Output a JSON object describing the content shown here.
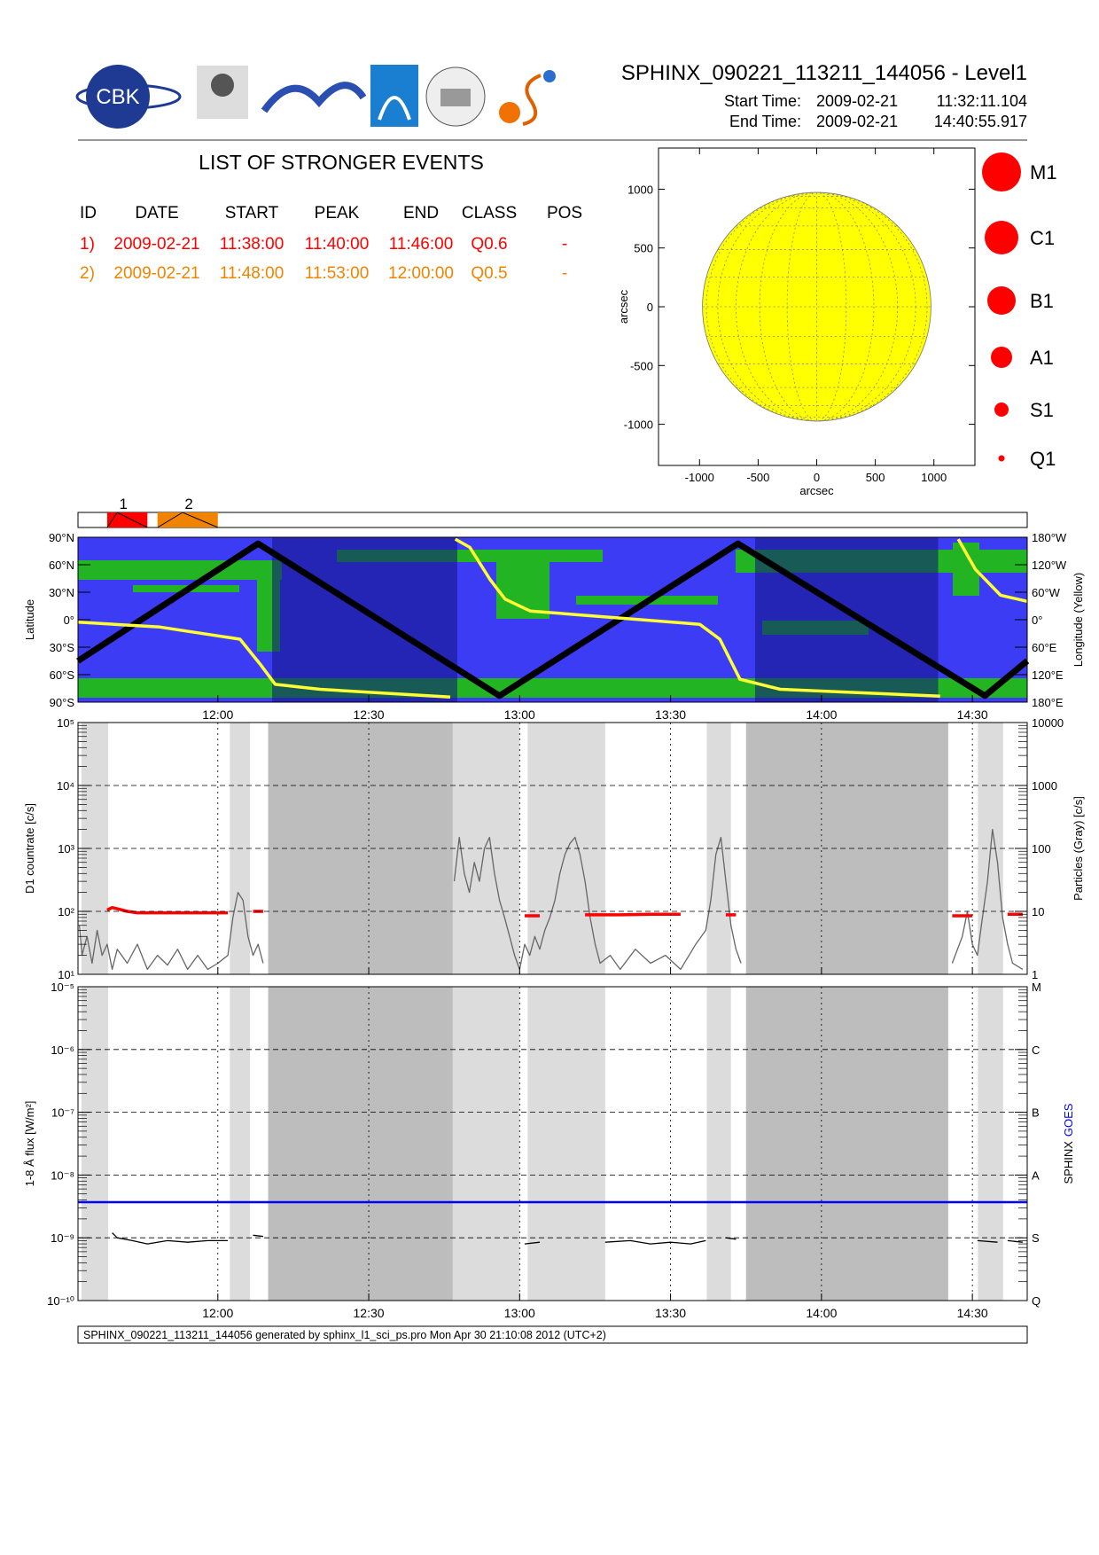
{
  "header": {
    "title": "SPHINX_090221_113211_144056 - Level1",
    "start_label": "Start Time:",
    "start_date": "2009-02-21",
    "start_time": "11:32:11.104",
    "end_label": "End Time:",
    "end_date": "2009-02-21",
    "end_time": "14:40:55.917",
    "logo_text": "CBK"
  },
  "events": {
    "title": "LIST OF STRONGER EVENTS",
    "columns": [
      "ID",
      "DATE",
      "START",
      "PEAK",
      "END",
      "CLASS",
      "POS"
    ],
    "rows": [
      [
        "1)",
        "2009-02-21",
        "11:38:00",
        "11:40:00",
        "11:46:00",
        "Q0.6",
        "-"
      ],
      [
        "2)",
        "2009-02-21",
        "11:48:00",
        "11:53:00",
        "12:00:00",
        "Q0.5",
        "-"
      ]
    ],
    "row_colors": [
      "#ff0000",
      "#f08400"
    ]
  },
  "footer": "SPHINX_090221_113211_144056 generated by sphinx_l1_sci_ps.pro Mon Apr 30 21:10:08 2012 (UTC+2)",
  "chart_data": [
    {
      "type": "disk",
      "xlabel": "arcsec",
      "ylabel": "arcsec",
      "xlim": [
        -1350,
        1350
      ],
      "ylim": [
        -1350,
        1350
      ],
      "xticks": [
        -1000,
        -500,
        0,
        500,
        1000
      ],
      "yticks": [
        -1000,
        -500,
        0,
        500,
        1000
      ],
      "radius": 975,
      "color": "#ffff00",
      "classes": [
        "M1",
        "C1",
        "B1",
        "A1",
        "S1",
        "Q1"
      ],
      "class_color": "#ff0000"
    },
    {
      "type": "timeline",
      "xlim": [
        692.2,
        880.9
      ],
      "events": [
        {
          "label": "1",
          "start": 698,
          "peak": 700,
          "end": 706,
          "color": "#ff0000"
        },
        {
          "label": "2",
          "start": 708,
          "peak": 713,
          "end": 720,
          "color": "#f08400"
        }
      ]
    },
    {
      "type": "map",
      "ylabel": "Latitude",
      "y2label": "Longitude (Yellow)",
      "xlim": [
        692.2,
        880.9
      ],
      "xticks": [
        {
          "value": 720,
          "label": "12:00"
        },
        {
          "value": 750,
          "label": "12:30"
        },
        {
          "value": 780,
          "label": "13:00"
        },
        {
          "value": 810,
          "label": "13:30"
        },
        {
          "value": 840,
          "label": "14:00"
        },
        {
          "value": 870,
          "label": "14:30"
        }
      ],
      "ylim": [
        -90,
        90
      ],
      "yticks": [
        {
          "value": 90,
          "label": "90°N"
        },
        {
          "value": 60,
          "label": "60°N"
        },
        {
          "value": 30,
          "label": "30°N"
        },
        {
          "value": 0,
          "label": "0°"
        },
        {
          "value": -30,
          "label": "30°S"
        },
        {
          "value": -60,
          "label": "60°S"
        },
        {
          "value": -90,
          "label": "90°S"
        }
      ],
      "y2lim": [
        180,
        -180
      ],
      "y2ticks": [
        {
          "value": -180,
          "label": "180°W"
        },
        {
          "value": -120,
          "label": "120°W"
        },
        {
          "value": -60,
          "label": "60°W"
        },
        {
          "value": 0,
          "label": "0°"
        },
        {
          "value": 60,
          "label": "60°E"
        },
        {
          "value": 120,
          "label": "120°E"
        },
        {
          "value": 180,
          "label": "180°E"
        }
      ],
      "shade": [
        [
          730.8,
          767.6
        ],
        [
          826.8,
          863.2
        ]
      ],
      "series": [
        {
          "color": "#000000",
          "x": [
            692.2,
            728,
            776,
            823.4,
            872.5,
            880.9
          ],
          "values": [
            -45,
            83,
            -83,
            83,
            -83,
            -45
          ]
        },
        {
          "color": "#ffff33",
          "axis": "y2",
          "x": [
            692.2,
            708.5,
            724.4,
            728.4,
            731.4,
            740.3,
            766.2,
            null,
            767.2,
            770.1,
            774.1,
            777.1,
            782.1,
            815.8,
            819.8,
            823.8,
            831.8,
            863.6,
            null,
            867.2,
            870.6,
            875.6,
            880.9
          ],
          "values": [
            5.5,
            16,
            42.5,
            97,
            141,
            152,
            169,
            null,
            -176,
            -158,
            -88,
            -45,
            -19,
            10,
            42.5,
            130,
            152,
            167,
            null,
            -176,
            -110,
            -53.5,
            -40
          ]
        }
      ]
    },
    {
      "type": "log-line",
      "ylabel": "D1 countrate [c/s]",
      "y2label": "Particles (Gray) [c/s]",
      "log": true,
      "grid": true,
      "xtick_labels": false,
      "xlim": [
        692.2,
        880.9
      ],
      "xticks": [
        {
          "value": 720,
          "label": "12:00"
        },
        {
          "value": 750,
          "label": "12:30"
        },
        {
          "value": 780,
          "label": "13:00"
        },
        {
          "value": 810,
          "label": "13:30"
        },
        {
          "value": 840,
          "label": "14:00"
        },
        {
          "value": 870,
          "label": "14:30"
        }
      ],
      "ylim": [
        10,
        100000
      ],
      "yticks": [
        {
          "value": 10,
          "label": "10¹"
        },
        {
          "value": 100,
          "label": "10²"
        },
        {
          "value": 1000,
          "label": "10³"
        },
        {
          "value": 10000,
          "label": "10⁴"
        },
        {
          "value": 100000,
          "label": "10⁵"
        }
      ],
      "y2lim": [
        1,
        10000
      ],
      "y2ticks": [
        1,
        10,
        100,
        1000,
        10000
      ],
      "light": [
        [
          692.9,
          698.2
        ],
        [
          722.4,
          726.4
        ],
        [
          766.7,
          780.0
        ],
        [
          781.6,
          797.0
        ],
        [
          817.2,
          822.0
        ],
        [
          871.1,
          876.1
        ]
      ],
      "dark": [
        [
          730.0,
          766.7
        ],
        [
          825.0,
          865.2
        ]
      ],
      "series": [
        {
          "color": "#666666",
          "axis": "y2",
          "x": [
            692.5,
            693,
            694,
            695,
            696,
            697,
            698,
            699,
            700,
            702,
            704,
            706,
            708,
            710,
            712,
            714,
            716,
            718,
            720,
            722,
            723,
            724,
            725,
            726,
            727,
            728,
            729,
            null,
            767,
            768,
            769,
            770,
            771,
            772,
            773,
            774,
            775,
            776,
            777,
            778,
            779,
            780,
            781,
            782,
            783,
            784,
            785,
            786,
            787,
            788,
            789,
            790,
            791,
            792,
            793,
            794,
            795,
            796,
            798,
            800,
            803,
            806,
            809,
            812,
            815,
            817,
            818,
            819,
            820,
            821,
            822,
            823,
            824,
            null,
            866,
            868,
            869,
            870,
            871,
            872,
            873,
            874,
            875,
            876,
            877,
            878,
            880
          ],
          "values": [
            6,
            2,
            4,
            1.5,
            5,
            2,
            3,
            1.2,
            2.5,
            1.5,
            3,
            1.2,
            2,
            1.4,
            2.5,
            1.2,
            2,
            1.2,
            1.5,
            2,
            8,
            20,
            15,
            4,
            2,
            3,
            1.5,
            null,
            30,
            150,
            40,
            20,
            60,
            30,
            100,
            150,
            40,
            15,
            8,
            4,
            2,
            1.2,
            3,
            2,
            4,
            2.5,
            5,
            8,
            15,
            40,
            80,
            120,
            150,
            80,
            30,
            8,
            3,
            1.5,
            2,
            1.2,
            2.5,
            1.5,
            2,
            1.2,
            3,
            5,
            15,
            80,
            150,
            30,
            6,
            2.5,
            1.5,
            null,
            1.5,
            4,
            10,
            3,
            2,
            8,
            30,
            200,
            60,
            8,
            3,
            1.5,
            1.2
          ]
        },
        {
          "color": "#ff0000",
          "x": [
            698,
            699,
            700,
            702,
            704,
            706,
            708,
            710,
            714,
            718,
            722,
            null,
            727,
            729,
            null,
            781,
            784,
            null,
            793,
            800,
            806,
            812,
            null,
            821,
            823,
            null,
            866,
            870,
            null,
            877,
            880
          ],
          "values": [
            105,
            115,
            110,
            100,
            95,
            95,
            95,
            95,
            95,
            95,
            95,
            null,
            100,
            100,
            null,
            85,
            85,
            null,
            88,
            88,
            90,
            90,
            null,
            88,
            88,
            null,
            85,
            85,
            null,
            90,
            90
          ]
        }
      ]
    },
    {
      "type": "log-line",
      "ylabel": "1-8 Å flux [W/m²]",
      "log": true,
      "grid": true,
      "xtick_labels": true,
      "xlim": [
        692.2,
        880.9
      ],
      "xticks": [
        {
          "value": 720,
          "label": "12:00"
        },
        {
          "value": 750,
          "label": "12:30"
        },
        {
          "value": 780,
          "label": "13:00"
        },
        {
          "value": 810,
          "label": "13:30"
        },
        {
          "value": 840,
          "label": "14:00"
        },
        {
          "value": 870,
          "label": "14:30"
        }
      ],
      "ylim": [
        1e-10,
        1e-05
      ],
      "yticks": [
        {
          "value": 1e-10,
          "label": "10⁻¹⁰"
        },
        {
          "value": 1e-09,
          "label": "10⁻⁹"
        },
        {
          "value": 1e-08,
          "label": "10⁻⁸"
        },
        {
          "value": 1e-07,
          "label": "10⁻⁷"
        },
        {
          "value": 1e-06,
          "label": "10⁻⁶"
        },
        {
          "value": 1e-05,
          "label": "10⁻⁵"
        }
      ],
      "y2lim": [
        1e-10,
        1e-05
      ],
      "y2ticks": [
        {
          "value": 1e-10,
          "label": "Q"
        },
        {
          "value": 1e-09,
          "label": "S"
        },
        {
          "value": 1e-08,
          "label": "A"
        },
        {
          "value": 1e-07,
          "label": "B"
        },
        {
          "value": 1e-06,
          "label": "C"
        },
        {
          "value": 1e-05,
          "label": "M"
        }
      ],
      "light": [
        [
          692.9,
          698.2
        ],
        [
          722.4,
          726.4
        ],
        [
          766.7,
          780.0
        ],
        [
          781.6,
          797.0
        ],
        [
          817.2,
          822.0
        ],
        [
          871.1,
          876.1
        ]
      ],
      "dark": [
        [
          730.0,
          766.7
        ],
        [
          825.0,
          865.2
        ]
      ],
      "series": [
        {
          "name": "SPHINX",
          "color": "#000000",
          "x": [
            699,
            700,
            703,
            706,
            710,
            714,
            718,
            722,
            null,
            727,
            729,
            null,
            781,
            784,
            null,
            797,
            802,
            806,
            810,
            814,
            817,
            null,
            821,
            823,
            null,
            871,
            875,
            null,
            877,
            880
          ],
          "values": [
            1.2e-09,
            1e-09,
            9e-10,
            8e-10,
            9e-10,
            8.5e-10,
            9e-10,
            9e-10,
            null,
            1.1e-09,
            1.05e-09,
            null,
            8e-10,
            8.5e-10,
            null,
            8.5e-10,
            9e-10,
            8e-10,
            8.5e-10,
            8e-10,
            9e-10,
            null,
            1e-09,
            9.5e-10,
            null,
            9e-10,
            8.5e-10,
            null,
            9e-10,
            8.5e-10
          ]
        },
        {
          "name": "GOES",
          "color": "#0000ff",
          "x": [
            692.2,
            880.9
          ],
          "values": [
            3.7e-09,
            3.7e-09
          ]
        }
      ]
    }
  ]
}
